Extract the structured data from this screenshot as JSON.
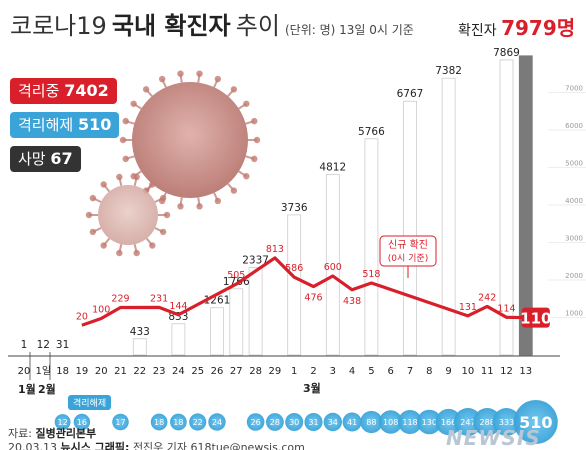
{
  "header": {
    "title_part1": "코로나19",
    "title_part2": "국내 확진자",
    "title_part3": "추이",
    "unit_note": "(단위: 명) 13일 0시 기준"
  },
  "legend": {
    "isolating_label": "격리중",
    "isolating_value": "7402",
    "released_label": "격리해제",
    "released_value": "510",
    "death_label": "사망",
    "death_value": "67"
  },
  "total": {
    "label": "확진자",
    "value": "7979명"
  },
  "new_cases_annotation": {
    "line1": "신규 확진",
    "line2": "(0시 기준)"
  },
  "released_row_label": "격리해제",
  "month_labels": {
    "jan": "1월",
    "feb": "2월",
    "mar": "3월"
  },
  "footer": {
    "source_prefix": "자료:",
    "source": "질병관리본부",
    "credit_date": "20.03.13",
    "credit_name": "뉴시스 그래픽:",
    "credit_rest": "전진우 기자 618tue@newsis.com",
    "logo": "NEWSIS"
  },
  "colors": {
    "bar": "#ffffff",
    "bar_stroke": "#cccccc",
    "highlight_bar": "#7a7a7a",
    "line": "#d81f2a",
    "isolating": "#d81f2a",
    "released": "#3aa3d8",
    "death": "#333333"
  },
  "chart_data": {
    "type": "bar",
    "categories": [
      "20",
      "1일",
      "18",
      "19",
      "20",
      "21",
      "22",
      "23",
      "24",
      "25",
      "26",
      "27",
      "28",
      "29",
      "1",
      "2",
      "3",
      "4",
      "5",
      "6",
      "7",
      "8",
      "9",
      "10",
      "11",
      "12",
      "13"
    ],
    "series": [
      {
        "name": "확진자",
        "values": [
          1,
          12,
          31,
          null,
          null,
          null,
          433,
          null,
          833,
          null,
          1261,
          1766,
          2337,
          null,
          3736,
          null,
          4812,
          null,
          5766,
          null,
          6767,
          null,
          7382,
          null,
          null,
          7869,
          7979
        ]
      },
      {
        "name": "신규 확진",
        "values": [
          null,
          null,
          null,
          20,
          100,
          229,
          null,
          231,
          144,
          null,
          null,
          505,
          null,
          813,
          586,
          476,
          600,
          438,
          518,
          null,
          null,
          null,
          null,
          131,
          242,
          114,
          110
        ]
      },
      {
        "name": "격리해제",
        "values": [
          null,
          null,
          12,
          16,
          null,
          17,
          null,
          18,
          18,
          22,
          24,
          null,
          26,
          28,
          30,
          31,
          34,
          41,
          88,
          108,
          118,
          130,
          166,
          247,
          288,
          333,
          510
        ]
      }
    ],
    "ylim": [
      0,
      8000
    ],
    "yticks": [
      1000,
      2000,
      3000,
      4000,
      5000,
      6000,
      7000
    ]
  }
}
